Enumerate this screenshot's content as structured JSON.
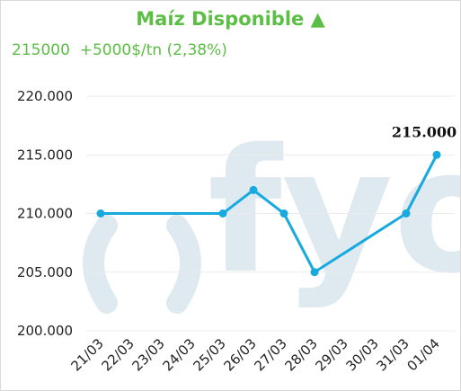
{
  "header": {
    "title": "Maíz Disponible",
    "trend_icon": "triangle-up",
    "trend_symbol": "▲",
    "price": "215000",
    "change": "+5000$/tn (2,38%)"
  },
  "colors": {
    "accent": "#5cbf45",
    "line": "#18a9df",
    "watermark": "#dfe9f0",
    "grid": "#ebebeb"
  },
  "watermark_text": "fyo",
  "chart_data": {
    "type": "line",
    "title": "Maíz Disponible",
    "xlabel": "",
    "ylabel": "",
    "categories": [
      "21/03",
      "22/03",
      "23/03",
      "24/03",
      "25/03",
      "26/03",
      "27/03",
      "28/03",
      "29/03",
      "30/03",
      "31/03",
      "01/04"
    ],
    "series": [
      {
        "values": [
          210000,
          null,
          null,
          null,
          210000,
          212000,
          210000,
          205000,
          null,
          null,
          210000,
          215000
        ]
      }
    ],
    "ylim": [
      200000,
      220000
    ],
    "yticks": [
      200000,
      205000,
      210000,
      215000,
      220000
    ],
    "ytick_labels": [
      "200.000",
      "205.000",
      "210.000",
      "215.000",
      "220.000"
    ],
    "grid": true,
    "last_value_label": "215.000"
  }
}
